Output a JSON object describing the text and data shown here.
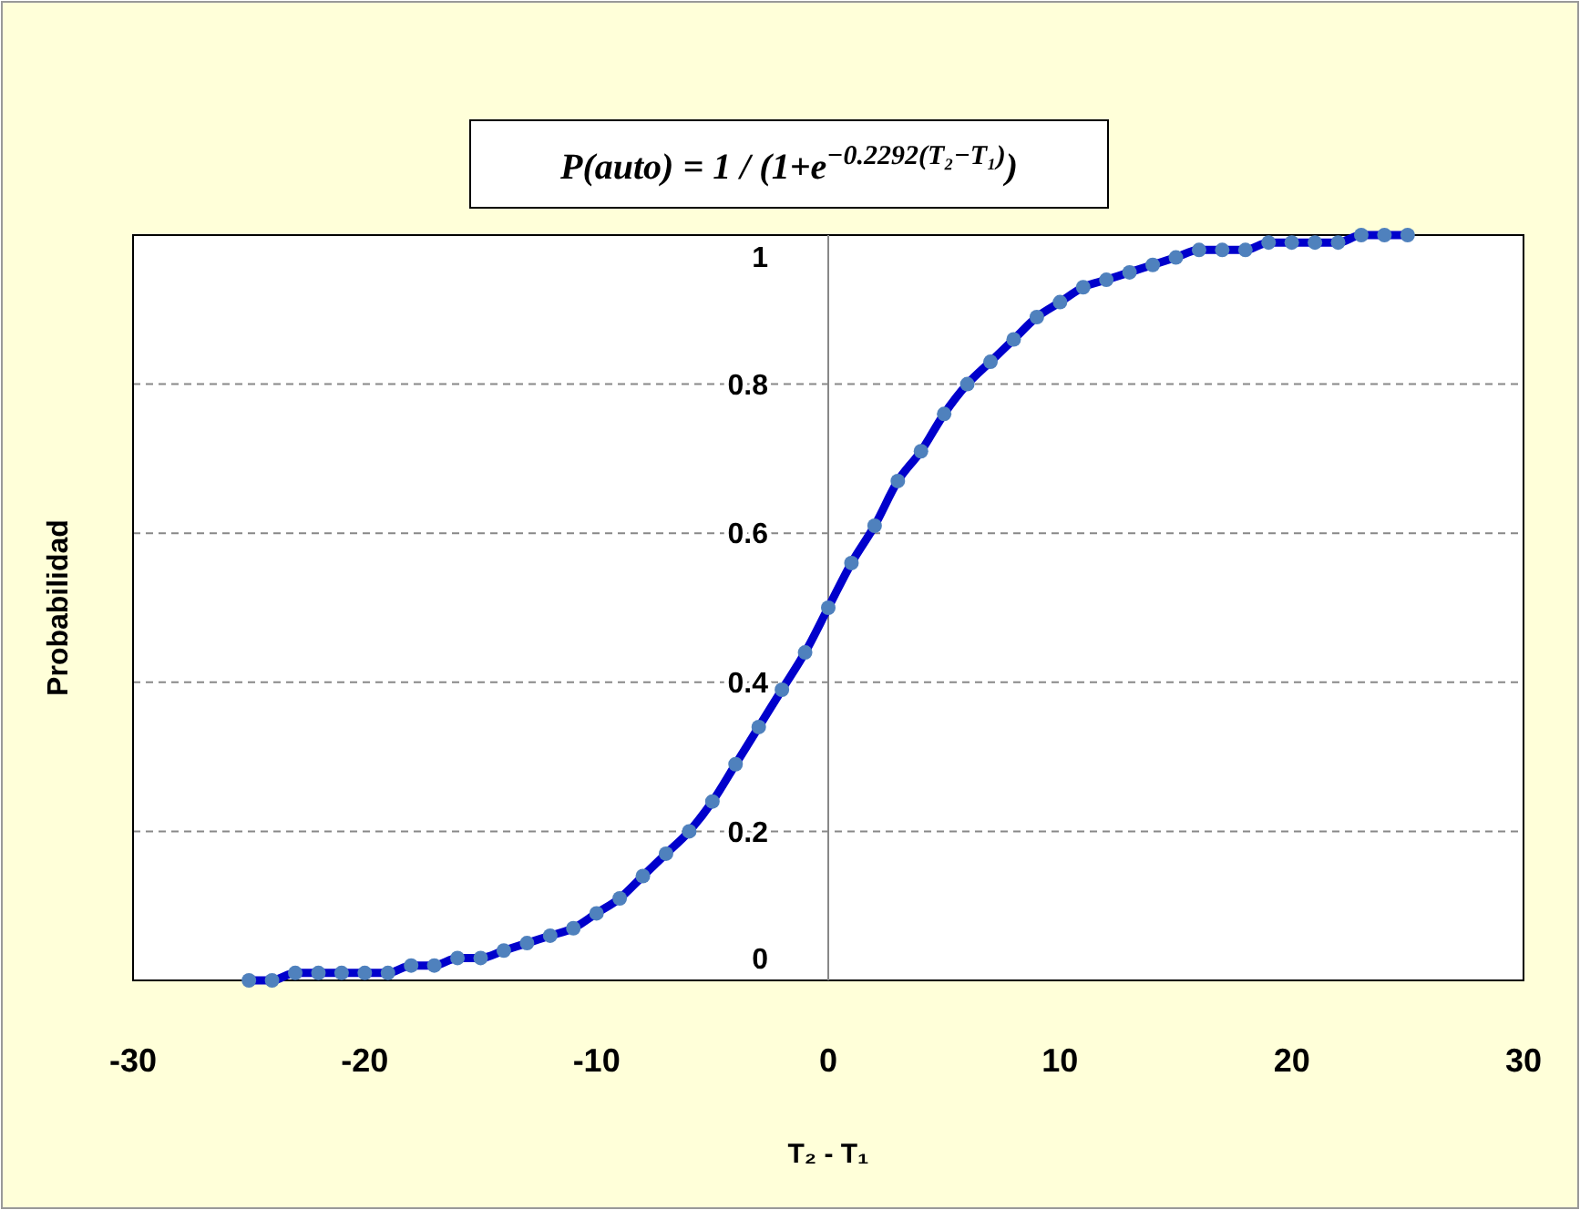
{
  "chart_data": {
    "type": "line",
    "title": "P(auto) = 1 / (1+e$^{−0.2292(T₂−T₁)}$)",
    "xlabel": "T₂ - T₁",
    "ylabel": "Probabilidad",
    "x": [
      -25,
      -24,
      -23,
      -22,
      -21,
      -20,
      -19,
      -18,
      -17,
      -16,
      -15,
      -14,
      -13,
      -12,
      -11,
      -10,
      -9,
      -8,
      -7,
      -6,
      -5,
      -4,
      -3,
      -2,
      -1,
      0,
      1,
      2,
      3,
      4,
      5,
      6,
      7,
      8,
      9,
      10,
      11,
      12,
      13,
      14,
      15,
      16,
      17,
      18,
      19,
      20,
      21,
      22,
      23,
      24,
      25
    ],
    "series": [
      {
        "color": "#0000cc",
        "marker": "none",
        "values": [
          0.0,
          0.0,
          0.01,
          0.01,
          0.01,
          0.01,
          0.01,
          0.02,
          0.02,
          0.03,
          0.03,
          0.04,
          0.05,
          0.06,
          0.07,
          0.09,
          0.11,
          0.14,
          0.17,
          0.2,
          0.24,
          0.29,
          0.34,
          0.39,
          0.44,
          0.5,
          0.56,
          0.61,
          0.67,
          0.71,
          0.76,
          0.8,
          0.83,
          0.86,
          0.89,
          0.91,
          0.93,
          0.94,
          0.95,
          0.96,
          0.97,
          0.98,
          0.98,
          0.98,
          0.99,
          0.99,
          0.99,
          0.99,
          1.0,
          1.0,
          1.0
        ]
      },
      {
        "type": "scatter",
        "color": "#4f81bd",
        "marker": "circle",
        "values": [
          0.0,
          0.0,
          0.01,
          0.01,
          0.01,
          0.01,
          0.01,
          0.02,
          0.02,
          0.03,
          0.03,
          0.04,
          0.05,
          0.06,
          0.07,
          0.09,
          0.11,
          0.14,
          0.17,
          0.2,
          0.24,
          0.29,
          0.34,
          0.39,
          0.44,
          0.5,
          0.56,
          0.61,
          0.67,
          0.71,
          0.76,
          0.8,
          0.83,
          0.86,
          0.89,
          0.91,
          0.93,
          0.94,
          0.95,
          0.96,
          0.97,
          0.98,
          0.98,
          0.98,
          0.99,
          0.99,
          0.99,
          0.99,
          1.0,
          1.0,
          1.0
        ]
      }
    ],
    "xlim": [
      -30,
      30
    ],
    "xticks": [
      -30,
      -20,
      -10,
      0,
      10,
      20,
      30
    ],
    "ylim": [
      0,
      1
    ],
    "yticks": [
      0,
      0.2,
      0.4,
      0.6,
      0.8,
      1
    ],
    "grid": "y"
  }
}
